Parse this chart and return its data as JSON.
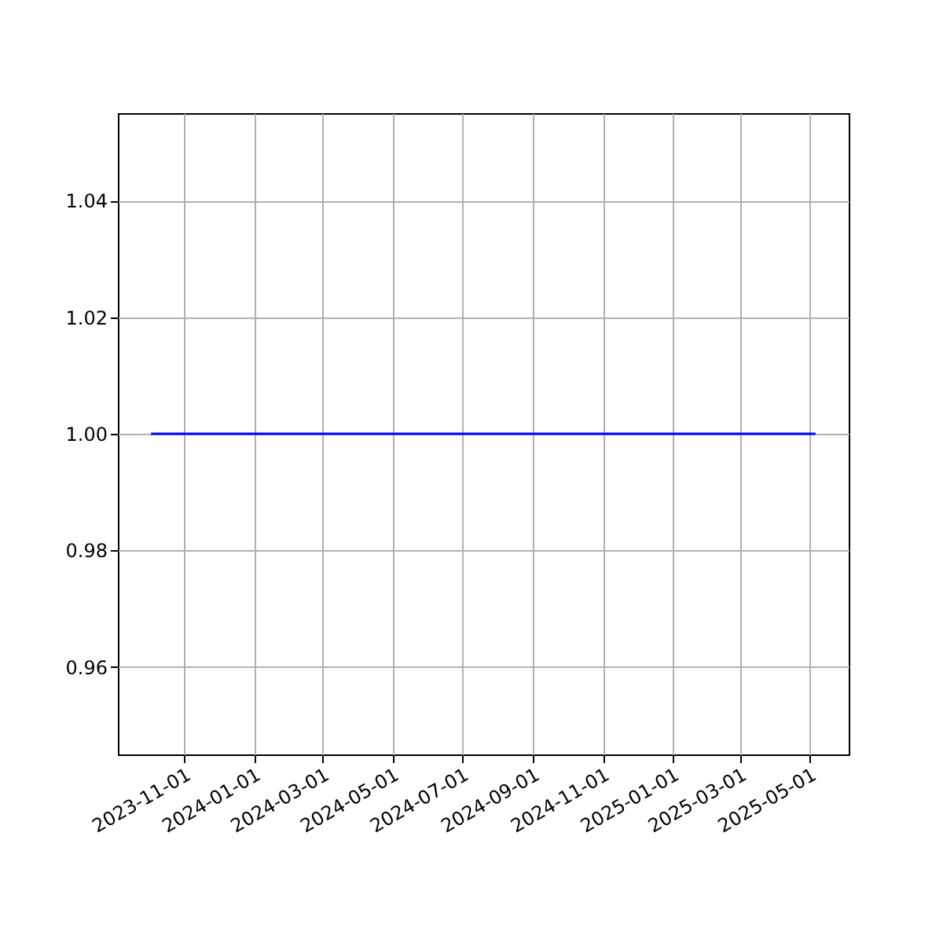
{
  "chart_data": {
    "type": "line",
    "x": [
      "2023-10-03",
      "2025-05-06"
    ],
    "series": [
      {
        "color": "#0000ff",
        "values": [
          1.0,
          1.0
        ]
      }
    ],
    "xlim": [
      "2023-09-04",
      "2025-06-04"
    ],
    "xticks": [
      "2023-11-01",
      "2024-01-01",
      "2024-03-01",
      "2024-05-01",
      "2024-07-01",
      "2024-09-01",
      "2024-11-01",
      "2025-01-01",
      "2025-03-01",
      "2025-05-01"
    ],
    "ylim": [
      0.945,
      1.055
    ],
    "yticks": [
      {
        "value": 0.96,
        "label": "0.96"
      },
      {
        "value": 0.98,
        "label": "0.98"
      },
      {
        "value": 1.0,
        "label": "1.00"
      },
      {
        "value": 1.02,
        "label": "1.02"
      },
      {
        "value": 1.04,
        "label": "1.04"
      }
    ],
    "grid": true
  }
}
